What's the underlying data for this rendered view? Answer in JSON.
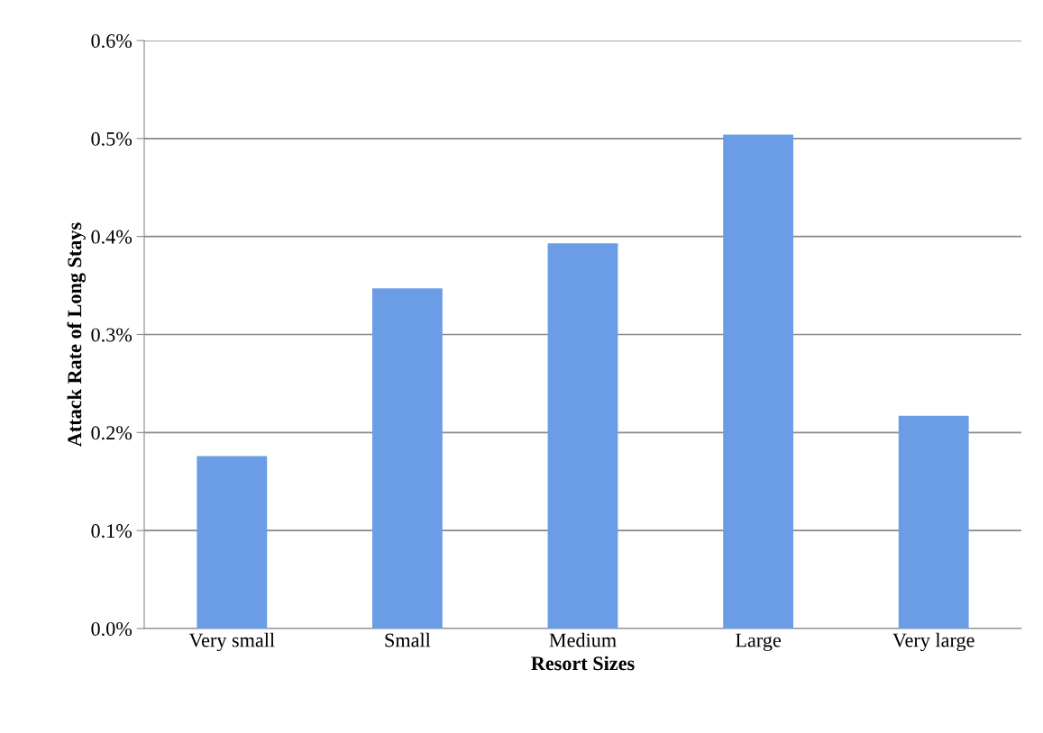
{
  "chart_data": {
    "type": "bar",
    "xlabel": "Resort Sizes",
    "ylabel": "Attack Rate of Long Stays",
    "categories": [
      "Very small",
      "Small",
      "Medium",
      "Large",
      "Very large"
    ],
    "values": [
      0.176,
      0.347,
      0.393,
      0.504,
      0.217
    ],
    "color": "#6a9de6",
    "ylim": [
      0,
      0.6
    ],
    "yticks": [
      {
        "value": 0,
        "label": "0.0%"
      },
      {
        "value": 0.1,
        "label": "0.1%"
      },
      {
        "value": 0.2,
        "label": "0.2%"
      },
      {
        "value": 0.3,
        "label": "0.3%"
      },
      {
        "value": 0.4,
        "label": "0.4%"
      },
      {
        "value": 0.5,
        "label": "0.5%"
      },
      {
        "value": 0.6,
        "label": "0.6%"
      }
    ],
    "grid": "y"
  }
}
